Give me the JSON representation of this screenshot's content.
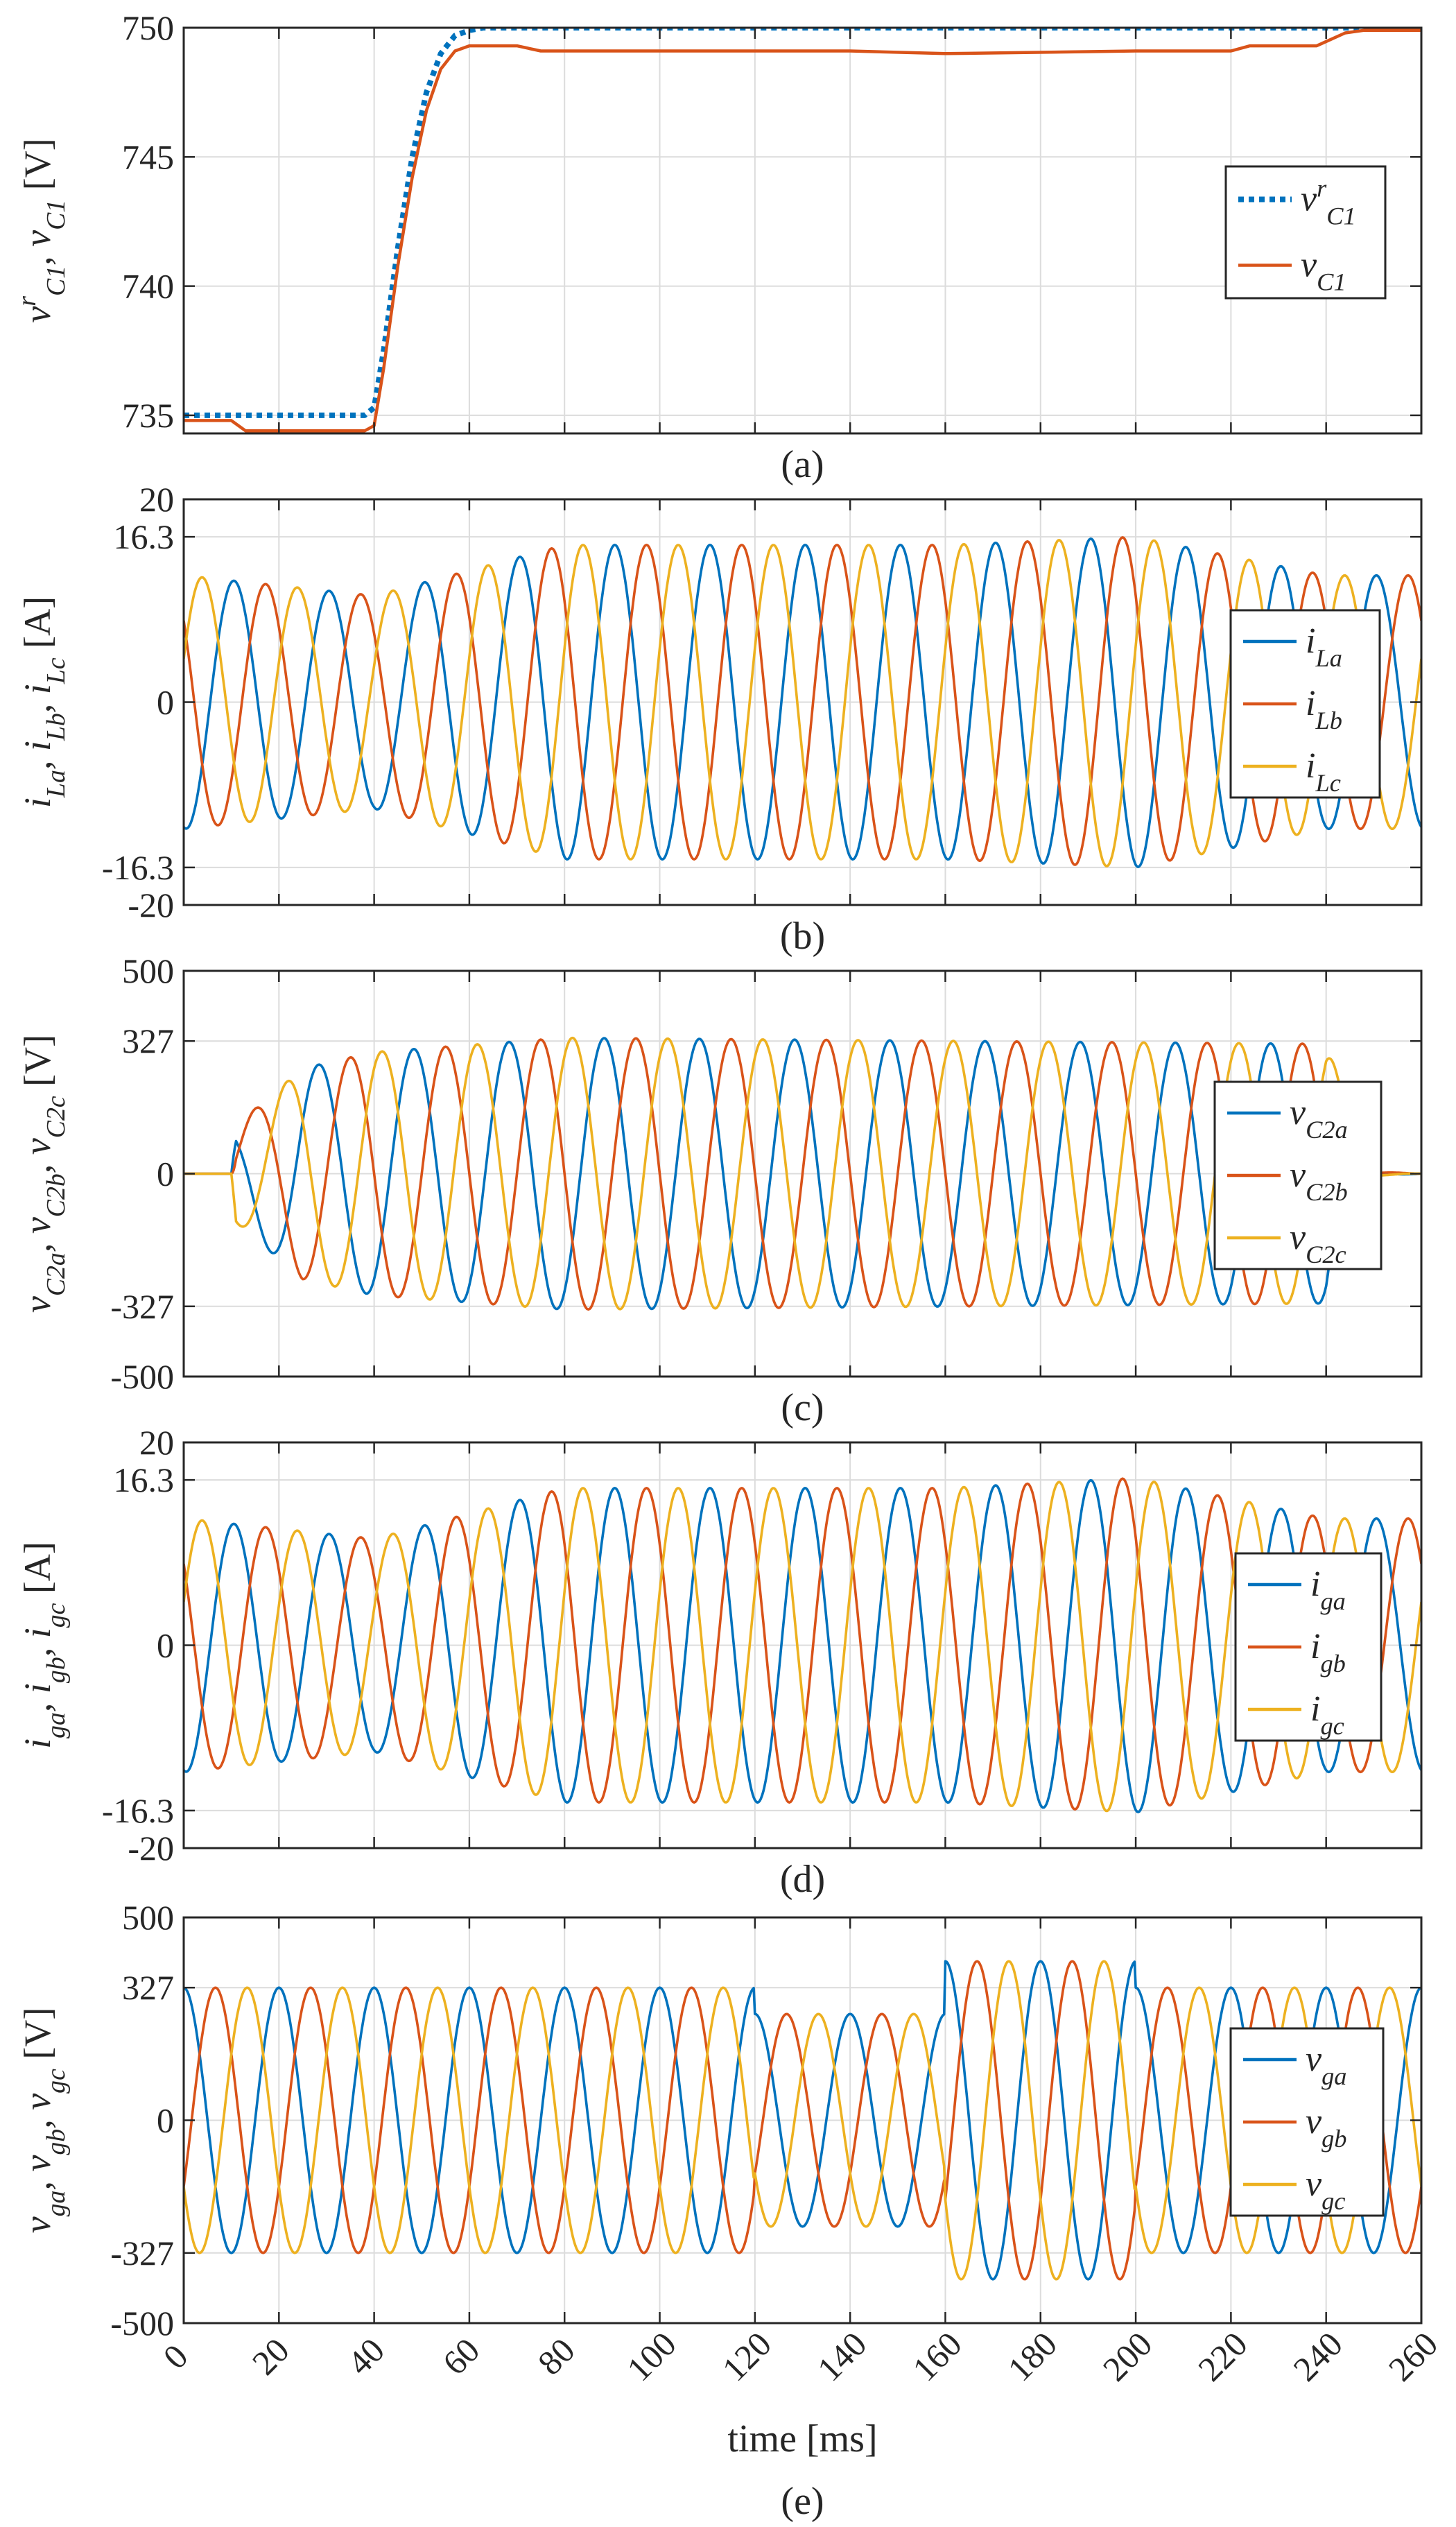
{
  "chart_data": [
    {
      "type": "line",
      "caption": "(a)",
      "ylabel": "v^r_{C1}, v_{C1} [V]",
      "ylim": [
        734.3,
        750
      ],
      "yticks": [
        735,
        740,
        745,
        750
      ],
      "xlim": [
        0,
        260
      ],
      "grid": true,
      "legend": "right",
      "series": [
        {
          "name": "v^r_{C1}",
          "style": "dotted",
          "x": [
            0,
            38,
            40,
            42,
            45,
            48,
            51,
            54,
            57,
            60,
            63,
            260
          ],
          "values": [
            735,
            735,
            735.3,
            737.5,
            741.5,
            745,
            747.5,
            749,
            749.7,
            749.9,
            750,
            750
          ]
        },
        {
          "name": "v_{C1}",
          "style": "solid",
          "x": [
            0,
            10,
            13,
            38,
            40,
            42,
            45,
            48,
            51,
            54,
            57,
            60,
            70,
            75,
            100,
            140,
            160,
            200,
            220,
            224,
            238,
            244,
            248,
            260
          ],
          "values": [
            734.8,
            734.8,
            734.4,
            734.4,
            734.6,
            736.8,
            740.8,
            744.2,
            746.8,
            748.4,
            749.1,
            749.3,
            749.3,
            749.1,
            749.1,
            749.1,
            749.0,
            749.1,
            749.1,
            749.3,
            749.3,
            749.8,
            749.9,
            749.9
          ]
        }
      ]
    },
    {
      "type": "line",
      "caption": "(b)",
      "ylabel": "i_{La}, i_{Lb}, i_{Lc} [A]",
      "ylim": [
        -20,
        20
      ],
      "yticks": [
        -20,
        -16.3,
        0,
        16.3,
        20
      ],
      "ytick_labels": [
        "-20",
        "-16.3",
        "0",
        "16.3",
        "20"
      ],
      "xlim": [
        0,
        260
      ],
      "grid": true,
      "legend": "right",
      "frequency_hz": 50,
      "phases_deg": [
        -100,
        140,
        20
      ],
      "amplitude_points": {
        "t": [
          0,
          40,
          80,
          160,
          200,
          240,
          260
        ],
        "values": [
          12.5,
          10.5,
          15.5,
          15.5,
          16.3,
          12.5,
          12.5
        ]
      },
      "series": [
        {
          "name": "i_{La}"
        },
        {
          "name": "i_{Lb}"
        },
        {
          "name": "i_{Lc}"
        }
      ]
    },
    {
      "type": "line",
      "caption": "(c)",
      "ylabel": "v_{C2a}, v_{C2b}, v_{C2c} [V]",
      "ylim": [
        -500,
        500
      ],
      "yticks": [
        -500,
        -327,
        0,
        327,
        500
      ],
      "ytick_labels": [
        "-500",
        "-327",
        "0",
        "327",
        "500"
      ],
      "xlim": [
        0,
        260
      ],
      "grid": true,
      "legend": "right",
      "frequency_hz": 50,
      "phases_deg": [
        -60,
        180,
        60
      ],
      "amplitude_points": {
        "t": [
          0,
          10,
          11,
          25,
          40,
          80,
          240,
          250,
          260
        ],
        "values": [
          0,
          0,
          120,
          260,
          300,
          335,
          320,
          5,
          0
        ]
      },
      "series": [
        {
          "name": "v_{C2a}"
        },
        {
          "name": "v_{C2b}"
        },
        {
          "name": "v_{C2c}"
        }
      ]
    },
    {
      "type": "line",
      "caption": "(d)",
      "ylabel": "i_{ga}, i_{gb}, i_{gc} [A]",
      "ylim": [
        -20,
        20
      ],
      "yticks": [
        -20,
        -16.3,
        0,
        16.3,
        20
      ],
      "ytick_labels": [
        "-20",
        "-16.3",
        "0",
        "16.3",
        "20"
      ],
      "xlim": [
        0,
        260
      ],
      "grid": true,
      "legend": "right",
      "frequency_hz": 50,
      "phases_deg": [
        -100,
        140,
        20
      ],
      "amplitude_points": {
        "t": [
          0,
          40,
          80,
          160,
          200,
          240,
          260
        ],
        "values": [
          12.5,
          10.5,
          15.5,
          15.5,
          16.5,
          12.5,
          12.5
        ]
      },
      "series": [
        {
          "name": "i_{ga}"
        },
        {
          "name": "i_{gb}"
        },
        {
          "name": "i_{gc}"
        }
      ]
    },
    {
      "type": "line",
      "caption": "(e)",
      "xlabel": "time [ms]",
      "ylabel": "v_{ga}, v_{gb}, v_{gc} [V]",
      "ylim": [
        -500,
        500
      ],
      "yticks": [
        -500,
        -327,
        0,
        327,
        500
      ],
      "ytick_labels": [
        "-500",
        "-327",
        "0",
        "327",
        "500"
      ],
      "xlim": [
        0,
        260
      ],
      "xticks": [
        0,
        20,
        40,
        60,
        80,
        100,
        120,
        140,
        160,
        180,
        200,
        220,
        240,
        260
      ],
      "xtick_labels": [
        "0",
        "20",
        "40",
        "60",
        "80",
        "100",
        "120",
        "140",
        "160",
        "180",
        "200",
        "220",
        "240",
        "260"
      ],
      "grid": true,
      "legend": "right",
      "frequency_hz": 50,
      "phases_deg": [
        90,
        -30,
        210
      ],
      "amplitude_points": {
        "t": [
          0,
          119.9,
          120,
          159.9,
          160,
          199.9,
          200,
          260
        ],
        "values": [
          327,
          327,
          262,
          262,
          392,
          392,
          327,
          327
        ]
      },
      "series": [
        {
          "name": "v_{ga}"
        },
        {
          "name": "v_{gb}"
        },
        {
          "name": "v_{gc}"
        }
      ]
    }
  ],
  "colors": {
    "blue": "#0072BD",
    "red": "#D95319",
    "yellow": "#EDB120",
    "axis": "#262626",
    "grid": "#dcdcdc"
  }
}
